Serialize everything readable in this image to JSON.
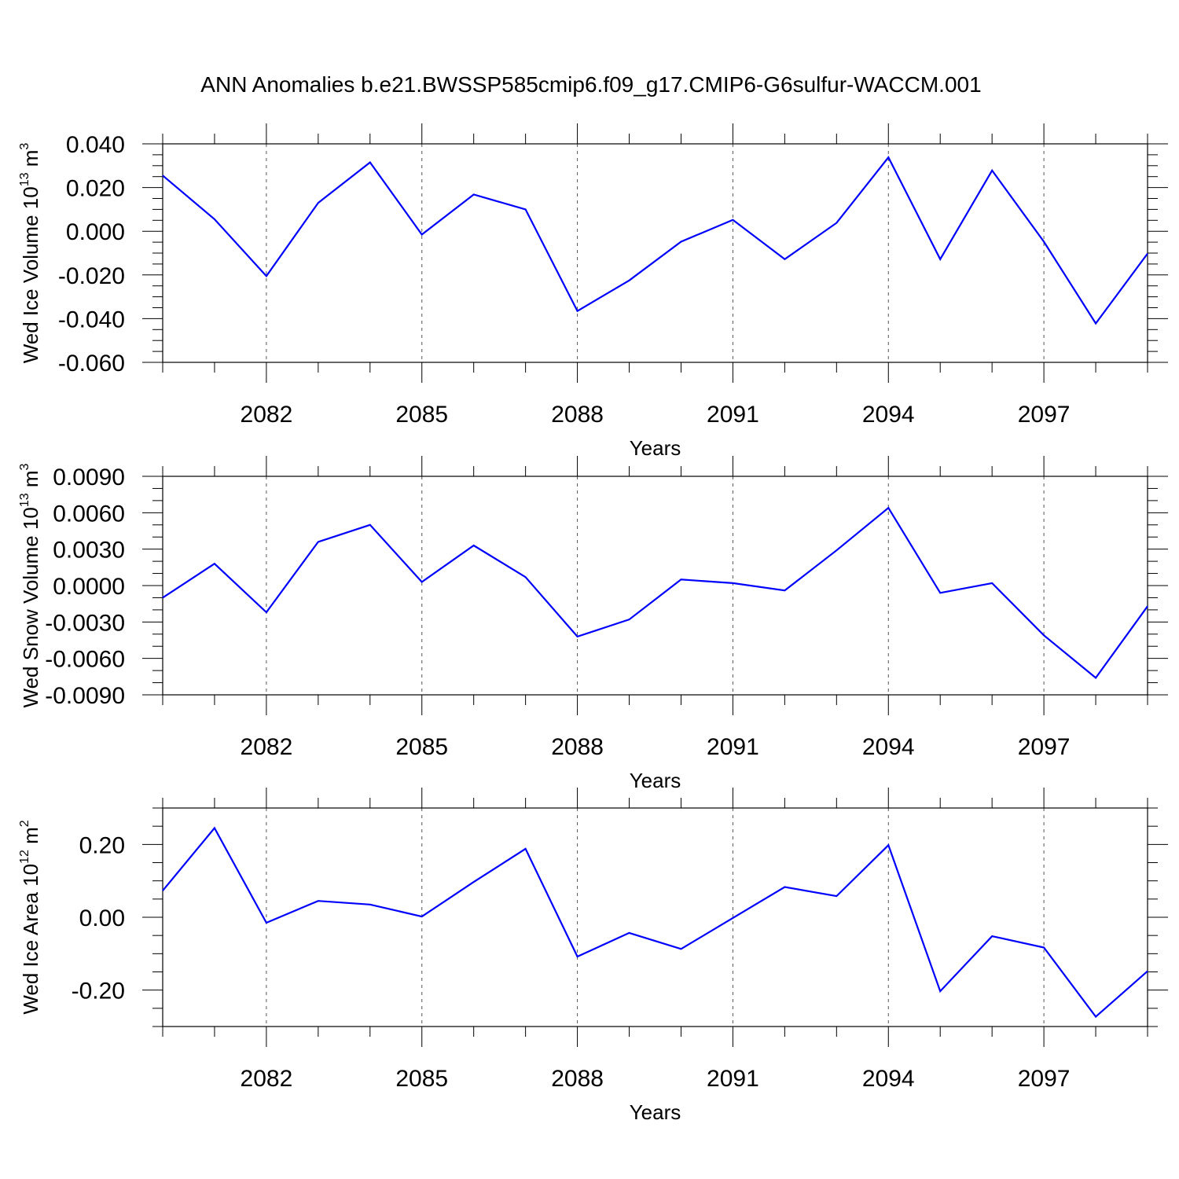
{
  "title": "ANN Anomalies b.e21.BWSSP585cmip6.f09_g17.CMIP6-G6sulfur-WACCM.001",
  "colors": {
    "line": "#0000ff",
    "axis": "#000000",
    "grid": "#555555"
  },
  "chart_data": [
    {
      "type": "line",
      "xlabel": "Years",
      "ylabel_main": "Wed Ice Volume 10",
      "ylabel_sup": "13",
      "ylabel_unit": " m",
      "ylabel_unit_sup": "3",
      "xlim": [
        2080,
        2099
      ],
      "ylim": [
        -0.06,
        0.04
      ],
      "xticks": [
        2082,
        2085,
        2088,
        2091,
        2094,
        2097
      ],
      "xtick_labels": [
        "2082",
        "2085",
        "2088",
        "2091",
        "2094",
        "2097"
      ],
      "yticks": [
        -0.06,
        -0.04,
        -0.02,
        0.0,
        0.02,
        0.04
      ],
      "ytick_labels": [
        "-0.060",
        "-0.040",
        "-0.020",
        "0.000",
        "0.020",
        "0.040"
      ],
      "yminor_step": 0.005,
      "grid": "vertical dashed at major x ticks",
      "x": [
        2080,
        2081,
        2082,
        2083,
        2084,
        2085,
        2086,
        2087,
        2088,
        2089,
        2090,
        2091,
        2092,
        2093,
        2094,
        2095,
        2096,
        2097,
        2098,
        2099
      ],
      "series": [
        {
          "values": [
            0.0255,
            0.0055,
            -0.0205,
            0.013,
            0.0315,
            -0.0015,
            0.0168,
            0.01,
            -0.0365,
            -0.0225,
            -0.0048,
            0.0052,
            -0.0128,
            0.0038,
            0.0338,
            -0.0128,
            0.0278,
            -0.0048,
            -0.0422,
            -0.0102
          ]
        }
      ]
    },
    {
      "type": "line",
      "xlabel": "Years",
      "ylabel_main": "Wed Snow Volume 10",
      "ylabel_sup": "13",
      "ylabel_unit": " m",
      "ylabel_unit_sup": "3",
      "xlim": [
        2080,
        2099
      ],
      "ylim": [
        -0.009,
        0.009
      ],
      "xticks": [
        2082,
        2085,
        2088,
        2091,
        2094,
        2097
      ],
      "xtick_labels": [
        "2082",
        "2085",
        "2088",
        "2091",
        "2094",
        "2097"
      ],
      "yticks": [
        -0.009,
        -0.006,
        -0.003,
        0.0,
        0.003,
        0.006,
        0.009
      ],
      "ytick_labels": [
        "-0.0090",
        "-0.0060",
        "-0.0030",
        "0.0000",
        "0.0030",
        "0.0060",
        "0.0090"
      ],
      "yminor_step": 0.001,
      "grid": "vertical dashed at major x ticks",
      "x": [
        2080,
        2081,
        2082,
        2083,
        2084,
        2085,
        2086,
        2087,
        2088,
        2089,
        2090,
        2091,
        2092,
        2093,
        2094,
        2095,
        2096,
        2097,
        2098,
        2099
      ],
      "series": [
        {
          "values": [
            -0.001,
            0.0018,
            -0.0022,
            0.0036,
            0.005,
            0.0003,
            0.0033,
            0.0007,
            -0.0042,
            -0.0028,
            0.0005,
            0.0002,
            -0.0004,
            0.0029,
            0.0064,
            -0.0006,
            0.0002,
            -0.0041,
            -0.0076,
            -0.0017
          ]
        }
      ]
    },
    {
      "type": "line",
      "xlabel": "Years",
      "ylabel_main": "Wed Ice Area 10",
      "ylabel_sup": "12",
      "ylabel_unit": " m",
      "ylabel_unit_sup": "2",
      "xlim": [
        2080,
        2099
      ],
      "ylim": [
        -0.3,
        0.3
      ],
      "xticks": [
        2082,
        2085,
        2088,
        2091,
        2094,
        2097
      ],
      "xtick_labels": [
        "2082",
        "2085",
        "2088",
        "2091",
        "2094",
        "2097"
      ],
      "yticks": [
        -0.2,
        0.0,
        0.2
      ],
      "ytick_labels": [
        "-0.20",
        "0.00",
        "0.20"
      ],
      "yminor_step": 0.05,
      "grid": "vertical dashed at major x ticks",
      "x": [
        2080,
        2081,
        2082,
        2083,
        2084,
        2085,
        2086,
        2087,
        2088,
        2089,
        2090,
        2091,
        2092,
        2093,
        2094,
        2095,
        2096,
        2097,
        2098,
        2099
      ],
      "series": [
        {
          "values": [
            0.073,
            0.245,
            -0.015,
            0.045,
            0.035,
            0.002,
            0.097,
            0.188,
            -0.108,
            -0.043,
            -0.087,
            -0.002,
            0.083,
            0.058,
            0.198,
            -0.203,
            -0.052,
            -0.083,
            -0.273,
            -0.148
          ]
        }
      ]
    }
  ]
}
